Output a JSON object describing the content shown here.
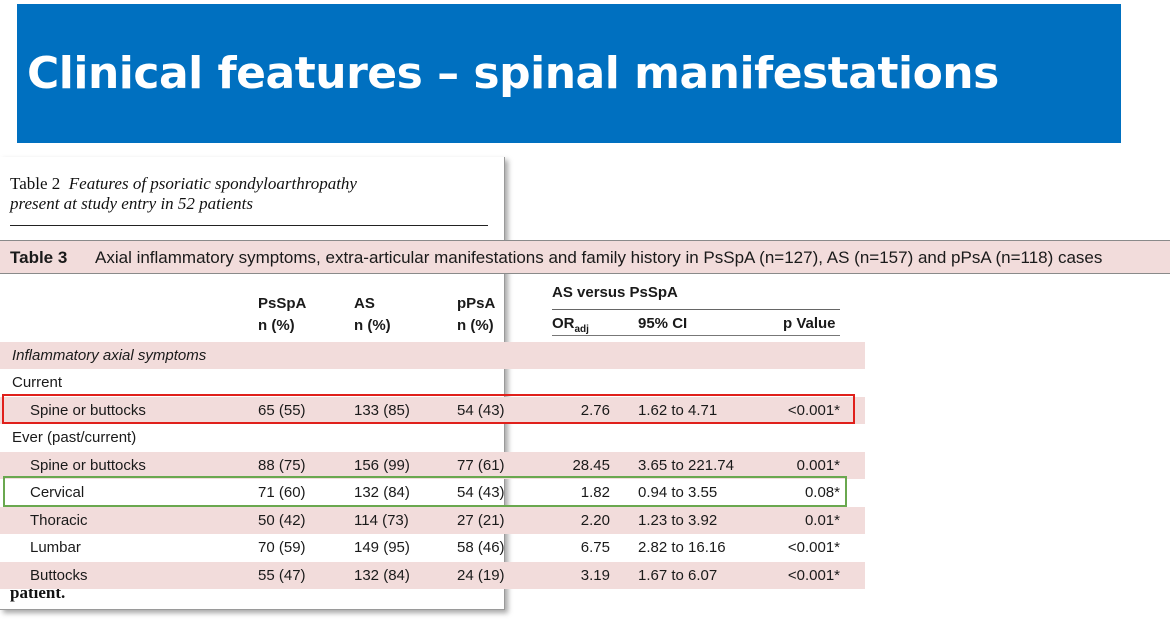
{
  "slide": {
    "title": "Clinical features – spinal manifestations"
  },
  "table2": {
    "label": "Table 2",
    "caption_line1": "Features of psoriatic spondyloarthropathy",
    "caption_line2": "present at study entry in 52 patients",
    "footer": "patient."
  },
  "table3": {
    "label": "Table 3",
    "caption": "Axial inflammatory symptoms, extra-articular manifestations and family history in PsSpA (n=127), AS (n=157) and pPsA (n=118) cases",
    "columns": {
      "psspa": "PsSpA",
      "as": "AS",
      "ppsa": "pPsA",
      "n_pct": "n (%)",
      "group": "AS versus PsSpA",
      "or": "OR",
      "or_sub": "adj",
      "ci": "95% CI",
      "pvalue": "p Value"
    },
    "rows": [
      {
        "label": "Inflammatory axial symptoms",
        "psspa": "",
        "as": "",
        "ppsa": "",
        "or": "",
        "ci": "",
        "p": ""
      },
      {
        "label": "Current",
        "psspa": "",
        "as": "",
        "ppsa": "",
        "or": "",
        "ci": "",
        "p": ""
      },
      {
        "label": "Spine or buttocks",
        "psspa": "65 (55)",
        "as": "133 (85)",
        "ppsa": "54 (43)",
        "or": "2.76",
        "ci": "1.62 to 4.71",
        "p": "<0.001*"
      },
      {
        "label": "Ever (past/current)",
        "psspa": "",
        "as": "",
        "ppsa": "",
        "or": "",
        "ci": "",
        "p": ""
      },
      {
        "label": "Spine or buttocks",
        "psspa": "88 (75)",
        "as": "156 (99)",
        "ppsa": "77 (61)",
        "or": "28.45",
        "ci": "3.65 to 221.74",
        "p": "0.001*"
      },
      {
        "label": "Cervical",
        "psspa": "71 (60)",
        "as": "132 (84)",
        "ppsa": "54 (43)",
        "or": "1.82",
        "ci": "0.94 to 3.55",
        "p": "0.08*"
      },
      {
        "label": "Thoracic",
        "psspa": "50 (42)",
        "as": "114 (73)",
        "ppsa": "27 (21)",
        "or": "2.20",
        "ci": "1.23 to 3.92",
        "p": "0.01*"
      },
      {
        "label": "Lumbar",
        "psspa": "70 (59)",
        "as": "149 (95)",
        "ppsa": "58 (46)",
        "or": "6.75",
        "ci": "2.82 to 16.16",
        "p": "<0.001*"
      },
      {
        "label": "Buttocks",
        "psspa": "55 (47)",
        "as": "132 (84)",
        "ppsa": "24 (19)",
        "or": "3.19",
        "ci": "1.67 to 6.07",
        "p": "<0.001*"
      }
    ]
  },
  "highlights": {
    "current_spine_box": "#e0201b",
    "cervical_box": "#6aa84f"
  }
}
